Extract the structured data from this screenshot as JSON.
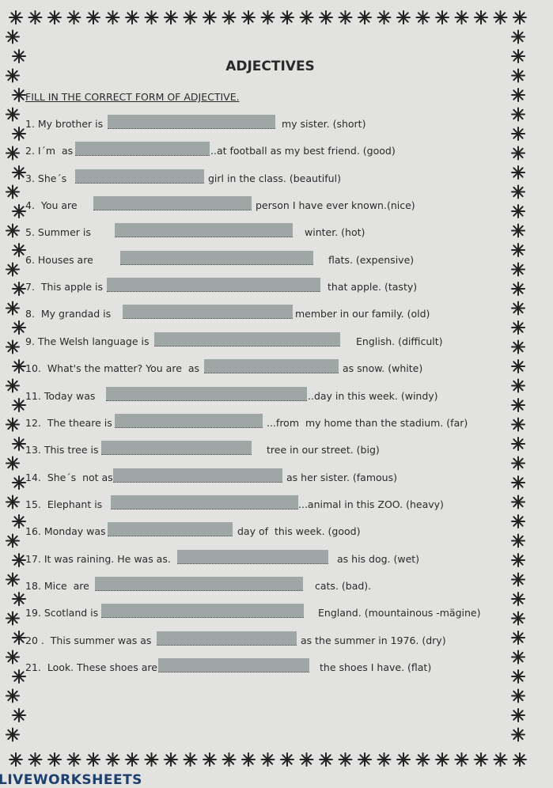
{
  "title": "ADJECTIVES",
  "instruction": "FILL IN THE CORRECT FORM OF ADJECTIVE.",
  "items": [
    {
      "before": "1. My brother is",
      "after": "my sister. (short)"
    },
    {
      "before": "2. I´m  as",
      "after": "..at football as my best friend. (good)"
    },
    {
      "before": "3. She´s",
      "after": "girl in the class. (beautiful)"
    },
    {
      "before": "4.  You are",
      "after": "person I have ever known.(nice)"
    },
    {
      "before": "5. Summer is",
      "after": "winter. (hot)"
    },
    {
      "before": "6. Houses are",
      "after": "flats. (expensive)"
    },
    {
      "before": "7.  This apple is",
      "after": "that apple. (tasty)"
    },
    {
      "before": "8.  My grandad is",
      "after": "member in our family. (old)"
    },
    {
      "before": "9. The Welsh language is",
      "after": "English. (difficult)"
    },
    {
      "before": "10.  What's the matter? You are  as",
      "after": "as snow. (white)"
    },
    {
      "before": "11. Today was",
      "after": "..day in this week. (windy)"
    },
    {
      "before": "12.  The theare is",
      "after": "...from  my home than the stadium. (far)"
    },
    {
      "before": "13. This tree is",
      "after": "tree in our street. (big)"
    },
    {
      "before": "14.  She´s  not as",
      "after": "as her sister. (famous)"
    },
    {
      "before": "15.  Elephant is",
      "after": "...animal in this ZOO. (heavy)"
    },
    {
      "before": "16. Monday was",
      "after": "day of  this week. (good)"
    },
    {
      "before": "17. It was raining. He was as.",
      "after": "as his dog. (wet)"
    },
    {
      "before": "18. Mice  are",
      "after": "cats. (bad)."
    },
    {
      "before": "19. Scotland is",
      "after": "England. (mountainous -mägine)"
    },
    {
      "before": "20 .  This summer was as",
      "after": "as the summer in 1976. (dry)"
    },
    {
      "before": "21.  Look. These shoes are",
      "after": "the shoes I have. (flat)"
    }
  ],
  "footer": "LIVEWORKSHEETS"
}
